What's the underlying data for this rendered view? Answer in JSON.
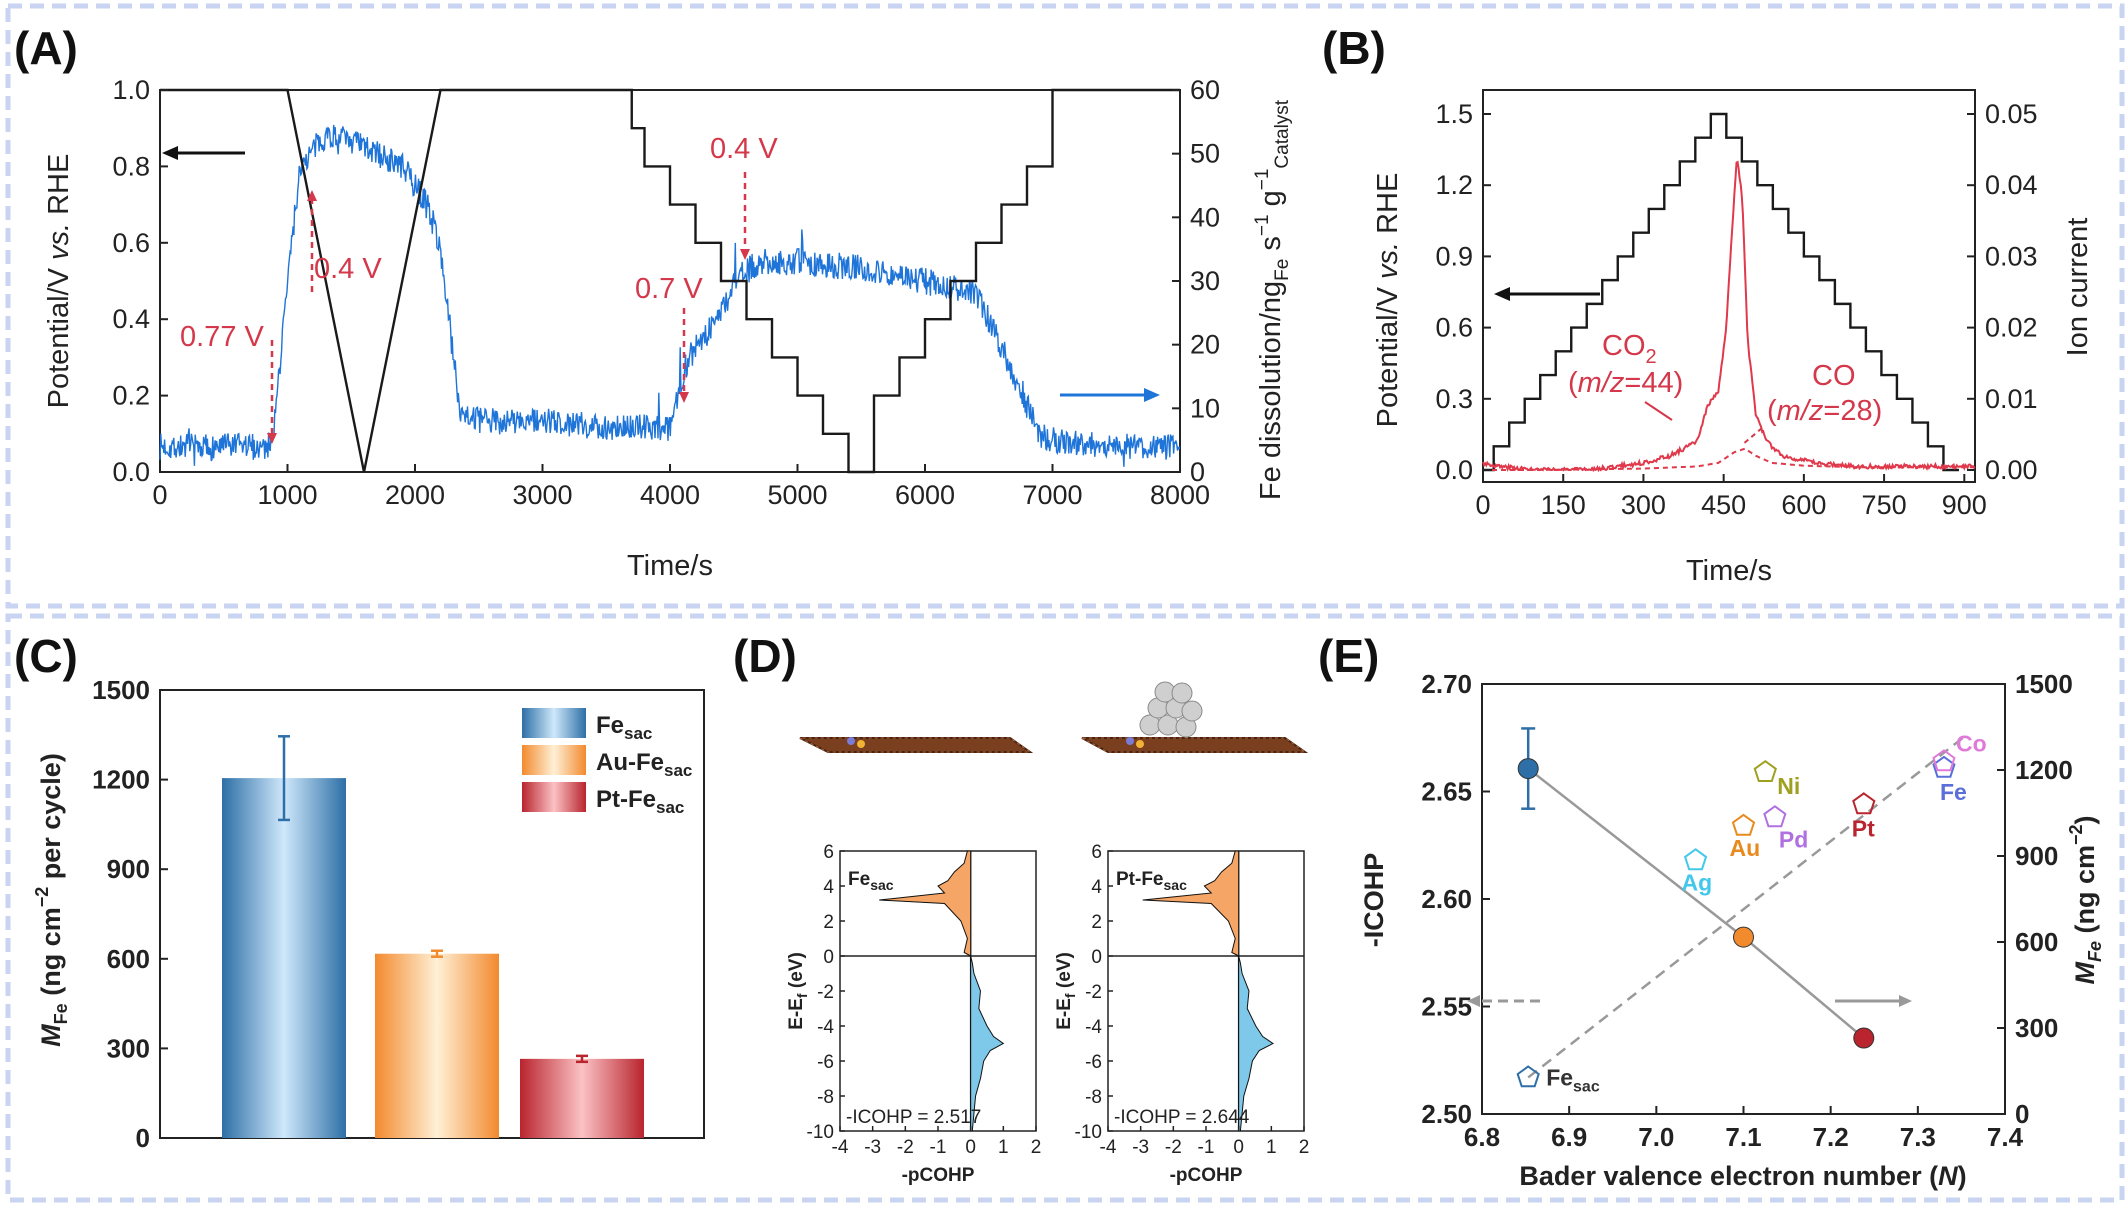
{
  "panels": {
    "A": {
      "label": "(A)"
    },
    "B": {
      "label": "(B)"
    },
    "C": {
      "label": "(C)"
    },
    "D": {
      "label": "(D)"
    },
    "E": {
      "label": "(E)"
    }
  },
  "chart_data": [
    {
      "panel": "A",
      "type": "line",
      "xlabel": "Time/s",
      "ylabel_left": "Potential/V vs. RHE",
      "ylabel_right": "Fe dissolution/ng_Fe s^-1 g^-1_Catalyst",
      "xlim": [
        0,
        8000
      ],
      "ylim_left": [
        0,
        1.0
      ],
      "ylim_right": [
        0,
        60
      ],
      "x_ticks": [
        "0",
        "1000",
        "2000",
        "3000",
        "4000",
        "5000",
        "6000",
        "7000",
        "8000"
      ],
      "y_ticks_left": [
        "0.0",
        "0.2",
        "0.4",
        "0.6",
        "0.8",
        "1.0"
      ],
      "y_ticks_right": [
        "0",
        "10",
        "20",
        "30",
        "40",
        "50",
        "60"
      ],
      "series": [
        {
          "axis": "left",
          "color": "#1a1a1a",
          "x": [
            0,
            1000,
            1600,
            2200,
            2600,
            3700,
            3700,
            3800,
            3800,
            4000,
            4000,
            4200,
            4200,
            4400,
            4400,
            4600,
            4600,
            4800,
            4800,
            5000,
            5000,
            5200,
            5200,
            5400,
            5400,
            5600,
            5600,
            5800,
            5800,
            6000,
            6000,
            6200,
            6200,
            6400,
            6400,
            6600,
            6600,
            6800,
            6800,
            7000,
            7000,
            8000
          ],
          "y": [
            1.0,
            1.0,
            0.0,
            1.0,
            1.0,
            1.0,
            0.9,
            0.9,
            0.8,
            0.8,
            0.7,
            0.7,
            0.6,
            0.6,
            0.5,
            0.5,
            0.4,
            0.4,
            0.3,
            0.3,
            0.2,
            0.2,
            0.1,
            0.1,
            0.0,
            0.0,
            0.2,
            0.2,
            0.3,
            0.3,
            0.4,
            0.4,
            0.5,
            0.5,
            0.6,
            0.6,
            0.7,
            0.7,
            0.8,
            0.8,
            1.0,
            1.0
          ]
        },
        {
          "axis": "right",
          "color": "#1e74d8",
          "x": [
            0,
            850,
            900,
            1000,
            1100,
            1300,
            1500,
            1700,
            1900,
            2100,
            2200,
            2350,
            2500,
            3000,
            3500,
            4000,
            4080,
            4150,
            4300,
            4450,
            4500,
            4700,
            5000,
            5500,
            6000,
            6400,
            6550,
            6700,
            6900,
            7000,
            7500,
            8000
          ],
          "y": [
            4,
            4,
            8,
            30,
            48,
            53,
            52,
            50,
            48,
            42,
            35,
            10,
            8,
            8,
            7,
            7,
            14,
            18,
            22,
            27,
            30,
            33,
            33,
            32,
            30,
            28,
            22,
            15,
            6,
            5,
            4,
            4
          ]
        }
      ],
      "annotations": [
        "0.77 V",
        "0.4 V",
        "0.7 V",
        "0.4 V"
      ]
    },
    {
      "panel": "B",
      "type": "line",
      "xlabel": "Time/s",
      "ylabel_left": "Potential/V vs. RHE",
      "ylabel_right": "Ion current",
      "xlim": [
        0,
        920
      ],
      "ylim_left": [
        0,
        1.5
      ],
      "ylim_right": [
        0,
        0.05
      ],
      "x_ticks": [
        "0",
        "150",
        "300",
        "450",
        "600",
        "750",
        "900"
      ],
      "y_ticks_left": [
        "0.0",
        "0.3",
        "0.6",
        "0.9",
        "1.2",
        "1.5"
      ],
      "y_ticks_right": [
        "0.00",
        "0.01",
        "0.02",
        "0.03",
        "0.04",
        "0.05"
      ],
      "series": [
        {
          "name": "Potential",
          "axis": "left",
          "color": "#1a1a1a",
          "x": [
            0,
            460,
            490,
            920
          ],
          "y": [
            0.0,
            1.5,
            1.5,
            0.0
          ]
        },
        {
          "axis": "right",
          "color": "#e0394b",
          "x": [
            0,
            30,
            100,
            200,
            300,
            350,
            400,
            420,
            440,
            455,
            465,
            475,
            485,
            495,
            510,
            530,
            560,
            620,
            700,
            800,
            920
          ],
          "y": [
            0.001,
            0.0005,
            0.0,
            0.0,
            0.001,
            0.002,
            0.004,
            0.009,
            0.011,
            0.02,
            0.033,
            0.044,
            0.038,
            0.018,
            0.008,
            0.004,
            0.002,
            0.001,
            0.0005,
            0.0005,
            0.0005
          ]
        },
        {
          "axis": "right",
          "color": "#e0394b",
          "dashed": true,
          "x": [
            0,
            100,
            300,
            400,
            440,
            470,
            490,
            510,
            540,
            600,
            700,
            800,
            920
          ],
          "y": [
            0.0,
            0.0,
            0.0002,
            0.0005,
            0.001,
            0.0025,
            0.003,
            0.002,
            0.001,
            0.0006,
            0.0004,
            0.0004,
            0.0004
          ]
        }
      ],
      "annotations": [
        "CO2 (m/z=44)",
        "CO (m/z=28)"
      ]
    },
    {
      "panel": "C",
      "type": "bar",
      "ylabel": "M_Fe (ng cm^-2 per cycle)",
      "ylim": [
        0,
        1500
      ],
      "y_ticks": [
        "0",
        "300",
        "600",
        "900",
        "1200",
        "1500"
      ],
      "categories": [
        "Fe_sac",
        "Au-Fe_sac",
        "Pt-Fe_sac"
      ],
      "values": [
        1205,
        617,
        265
      ],
      "errors": [
        140,
        10,
        10
      ],
      "colors": [
        "#2d6fa6",
        "#f28a2e",
        "#b9242e"
      ],
      "legend": [
        "Fe_sac",
        "Au-Fe_sac",
        "Pt-Fe_sac"
      ]
    },
    {
      "panel": "D",
      "type": "area",
      "subplots": [
        {
          "label": "Fe_sac",
          "annotation": "-ICOHP = 2.517"
        },
        {
          "label": "Pt-Fe_sac",
          "annotation": "-ICOHP = 2.644"
        }
      ],
      "xlabel": "-pCOHP",
      "ylabel": "E-E_f (eV)",
      "xlim": [
        -4,
        2
      ],
      "ylim": [
        -10,
        6
      ],
      "x_ticks": [
        "-4",
        "-3",
        "-2",
        "-1",
        "0",
        "1",
        "2"
      ],
      "y_ticks": [
        "-10",
        "-8",
        "-6",
        "-4",
        "-2",
        "0",
        "2",
        "4",
        "6"
      ],
      "bonding": {
        "color": "#7ec8ea",
        "e": [
          -0.4,
          -1,
          -2,
          -3,
          -4,
          -4.6,
          -5,
          -5.4,
          -6,
          -7,
          -8,
          -9,
          -10
        ],
        "v": [
          0.05,
          0.1,
          0.3,
          0.25,
          0.5,
          0.7,
          1.0,
          0.6,
          0.4,
          0.3,
          0.15,
          0.1,
          0.05
        ]
      },
      "antibonding": {
        "color": "#f5a565",
        "e": [
          0.2,
          1,
          2,
          3,
          3.2,
          3.6,
          4,
          4.3,
          4.8,
          5.3,
          6
        ],
        "v": [
          -0.2,
          -0.1,
          -0.3,
          -0.8,
          -2.8,
          -0.8,
          -1.0,
          -0.7,
          -0.5,
          -0.2,
          -0.1
        ]
      }
    },
    {
      "panel": "E",
      "type": "scatter",
      "xlabel": "Bader valence electron number (N)",
      "ylabel_left": "-ICOHP",
      "ylabel_right": "M_Fe (ng cm^-2)",
      "xlim": [
        6.8,
        7.4
      ],
      "ylim_left": [
        2.5,
        2.7
      ],
      "ylim_right": [
        0,
        1500
      ],
      "x_ticks": [
        "6.8",
        "6.9",
        "7.0",
        "7.1",
        "7.2",
        "7.3",
        "7.4"
      ],
      "y_ticks_left": [
        "2.50",
        "2.55",
        "2.60",
        "2.65",
        "2.70"
      ],
      "y_ticks_right": [
        "0",
        "300",
        "600",
        "900",
        "1200",
        "1500"
      ],
      "mfe_points": {
        "x": [
          6.853,
          7.1,
          7.238
        ],
        "y": [
          1205,
          617,
          265
        ],
        "err": [
          140,
          10,
          10
        ],
        "colors": [
          "#2d6fa6",
          "#f28a2e",
          "#b9242e"
        ]
      },
      "icohp_points": [
        {
          "label": "Fe_sac",
          "x": 6.853,
          "y": 2.517,
          "color": "#2d6fa6"
        },
        {
          "label": "Ag",
          "x": 7.045,
          "y": 2.618,
          "color": "#44c8ea"
        },
        {
          "label": "Au",
          "x": 7.1,
          "y": 2.634,
          "color": "#e88a1d"
        },
        {
          "label": "Pd",
          "x": 7.136,
          "y": 2.638,
          "color": "#b070e0"
        },
        {
          "label": "Ni",
          "x": 7.125,
          "y": 2.659,
          "color": "#a0a020"
        },
        {
          "label": "Pt",
          "x": 7.238,
          "y": 2.644,
          "color": "#b9242e"
        },
        {
          "label": "Fe",
          "x": 7.33,
          "y": 2.661,
          "color": "#5a6fd8"
        },
        {
          "label": "Co",
          "x": 7.33,
          "y": 2.664,
          "color": "#e07ad8"
        }
      ]
    }
  ]
}
